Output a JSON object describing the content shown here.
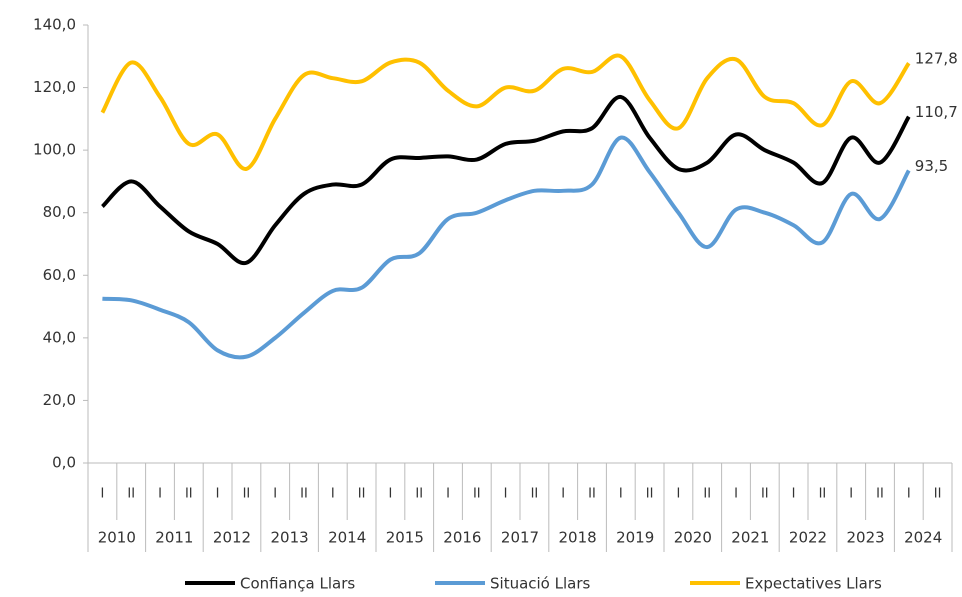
{
  "chart_data": {
    "type": "line",
    "categories": [
      "I",
      "II",
      "I",
      "II",
      "I",
      "II",
      "I",
      "II",
      "I",
      "II",
      "I",
      "II",
      "I",
      "II",
      "I",
      "II",
      "I",
      "II",
      "I",
      "II",
      "I",
      "II",
      "I",
      "II",
      "I",
      "II",
      "I",
      "II",
      "I",
      "II"
    ],
    "category_groups": [
      "2010",
      "2011",
      "2012",
      "2013",
      "2014",
      "2015",
      "2016",
      "2017",
      "2018",
      "2019",
      "2020",
      "2021",
      "2022",
      "2023",
      "2024"
    ],
    "ylim": [
      0,
      140
    ],
    "yticks": [
      {
        "value": 0,
        "label": "0,0"
      },
      {
        "value": 20,
        "label": "20,0"
      },
      {
        "value": 40,
        "label": "40,0"
      },
      {
        "value": 60,
        "label": "60,0"
      },
      {
        "value": 80,
        "label": "80,0"
      },
      {
        "value": 100,
        "label": "100,0"
      },
      {
        "value": 120,
        "label": "120,0"
      },
      {
        "value": 140,
        "label": "140,0"
      }
    ],
    "legend": "bottom",
    "series": [
      {
        "name": "Confiança Llars",
        "color": "#000000",
        "values": [
          82,
          90,
          82,
          74,
          70,
          64,
          76,
          86,
          89,
          89,
          97,
          97.5,
          98,
          97,
          102,
          103,
          106,
          107,
          117,
          104,
          94,
          96,
          105,
          100,
          96,
          89.5,
          104,
          96,
          110.7,
          null
        ],
        "value_labels": [
          null,
          null,
          null,
          null,
          null,
          null,
          null,
          null,
          null,
          null,
          null,
          null,
          null,
          null,
          null,
          null,
          null,
          null,
          null,
          null,
          null,
          null,
          null,
          null,
          null,
          null,
          null,
          null,
          "110,7",
          null
        ]
      },
      {
        "name": "Situació Llars",
        "color": "#5b9bd5",
        "values": [
          52.5,
          52,
          49,
          45,
          36,
          34,
          40,
          48,
          55,
          56,
          65,
          67,
          78,
          80,
          84,
          87,
          87,
          89,
          104,
          93,
          80,
          69,
          81,
          80,
          76,
          70.5,
          86,
          78,
          93.5,
          null
        ],
        "value_labels": [
          null,
          null,
          null,
          null,
          null,
          null,
          null,
          null,
          null,
          null,
          null,
          null,
          null,
          null,
          null,
          null,
          null,
          null,
          null,
          null,
          null,
          null,
          null,
          null,
          null,
          null,
          null,
          null,
          "93,5",
          null
        ]
      },
      {
        "name": "Expectatives Llars",
        "color": "#ffc000",
        "values": [
          112,
          128,
          117,
          102,
          105,
          94,
          110,
          124,
          123,
          122,
          128,
          128,
          119,
          114,
          120,
          119,
          126,
          125,
          130,
          116,
          107,
          123,
          129,
          117,
          115,
          108,
          122,
          115,
          127.8,
          null
        ],
        "value_labels": [
          null,
          null,
          null,
          null,
          null,
          null,
          null,
          null,
          null,
          null,
          null,
          null,
          null,
          null,
          null,
          null,
          null,
          null,
          null,
          null,
          null,
          null,
          null,
          null,
          null,
          null,
          null,
          null,
          "127,8",
          null
        ]
      }
    ]
  }
}
